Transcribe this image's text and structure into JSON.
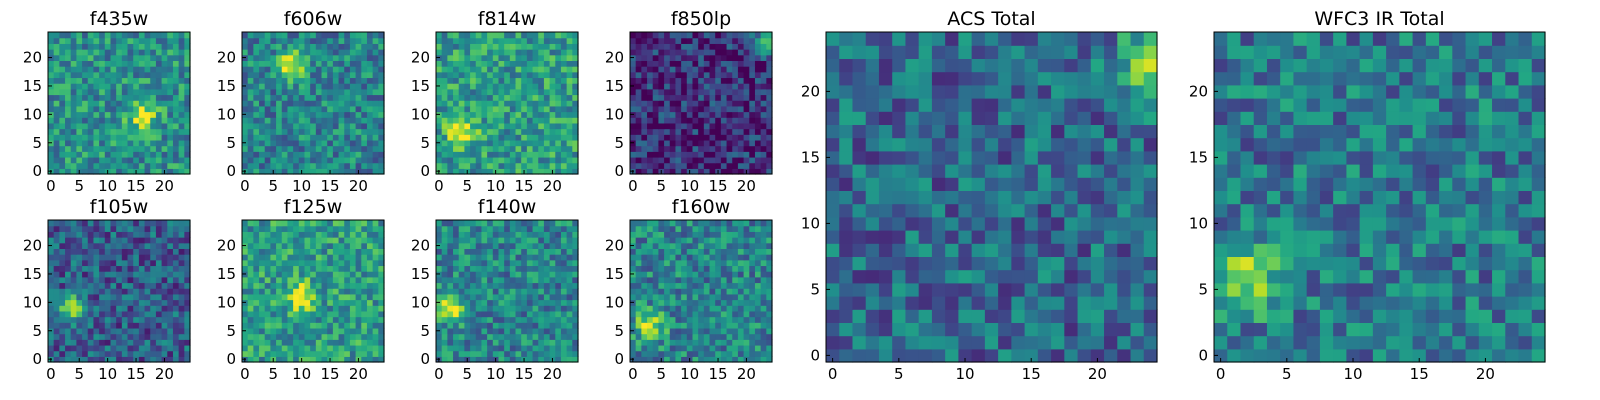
{
  "figure": {
    "panels": [
      {
        "title": "f435w",
        "xticks": [
          "0",
          "5",
          "10",
          "15",
          "20"
        ],
        "yticks": [
          "0",
          "5",
          "10",
          "15",
          "20"
        ],
        "intensity_level": 0.5,
        "bright_spot": [
          16,
          10
        ]
      },
      {
        "title": "f606w",
        "xticks": [
          "0",
          "5",
          "10",
          "15",
          "20"
        ],
        "yticks": [
          "0",
          "5",
          "10",
          "15",
          "20"
        ],
        "intensity_level": 0.45,
        "bright_spot": [
          8,
          19
        ]
      },
      {
        "title": "f814w",
        "xticks": [
          "0",
          "5",
          "10",
          "15",
          "20"
        ],
        "yticks": [
          "0",
          "5",
          "10",
          "15",
          "20"
        ],
        "intensity_level": 0.55,
        "bright_spot": [
          4,
          7
        ]
      },
      {
        "title": "f850lp",
        "xticks": [
          "0",
          "5",
          "10",
          "15",
          "20"
        ],
        "yticks": [
          "0",
          "5",
          "10",
          "15",
          "20"
        ],
        "intensity_level": 0.15,
        "bright_spot": [
          24,
          23
        ]
      },
      {
        "title": "f105w",
        "xticks": [
          "0",
          "5",
          "10",
          "15",
          "20"
        ],
        "yticks": [
          "0",
          "5",
          "10",
          "15",
          "20"
        ],
        "intensity_level": 0.3,
        "bright_spot": [
          4,
          9
        ]
      },
      {
        "title": "f125w",
        "xticks": [
          "0",
          "5",
          "10",
          "15",
          "20"
        ],
        "yticks": [
          "0",
          "5",
          "10",
          "15",
          "20"
        ],
        "intensity_level": 0.55,
        "bright_spot": [
          10,
          11
        ]
      },
      {
        "title": "f140w",
        "xticks": [
          "0",
          "5",
          "10",
          "15",
          "20"
        ],
        "yticks": [
          "0",
          "5",
          "10",
          "15",
          "20"
        ],
        "intensity_level": 0.45,
        "bright_spot": [
          2,
          9
        ]
      },
      {
        "title": "f160w",
        "xticks": [
          "0",
          "5",
          "10",
          "15",
          "20"
        ],
        "yticks": [
          "0",
          "5",
          "10",
          "15",
          "20"
        ],
        "intensity_level": 0.45,
        "bright_spot": [
          3,
          6
        ]
      },
      {
        "title": "ACS Total",
        "xticks": [
          "0",
          "5",
          "10",
          "15",
          "20"
        ],
        "yticks": [
          "0",
          "5",
          "10",
          "15",
          "20"
        ],
        "intensity_level": 0.35,
        "bright_spot": [
          24,
          22
        ]
      },
      {
        "title": "WFC3 IR Total",
        "xticks": [
          "0",
          "5",
          "10",
          "15",
          "20"
        ],
        "yticks": [
          "0",
          "5",
          "10",
          "15",
          "20"
        ],
        "intensity_level": 0.4,
        "bright_spot": [
          2,
          6
        ]
      }
    ]
  },
  "chart_data": {
    "type": "heatmap",
    "colormap": "viridis",
    "grid_size": [
      25,
      25
    ],
    "xlim": [
      -0.5,
      24.5
    ],
    "ylim": [
      -0.5,
      24.5
    ],
    "grid": false
  }
}
